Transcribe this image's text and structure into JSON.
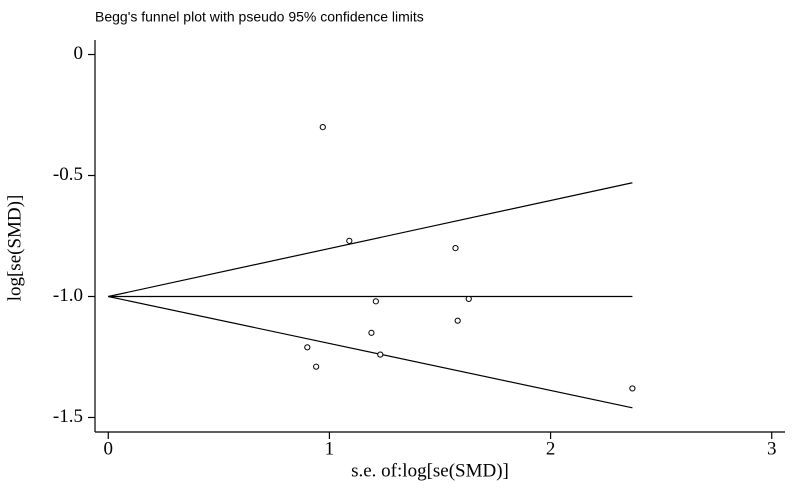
{
  "chart_data": {
    "type": "scatter",
    "title": "Begg's funnel plot with pseudo 95% confidence limits",
    "xlabel": "s.e. of:log[se(SMD)]",
    "ylabel": "log[se(SMD)]",
    "x": [
      0.97,
      1.09,
      1.57,
      1.21,
      1.63,
      1.19,
      1.58,
      0.9,
      0.94,
      1.23,
      2.37
    ],
    "values": [
      -0.3,
      -0.77,
      -0.8,
      -1.02,
      -1.01,
      -1.15,
      -1.1,
      -1.21,
      -1.29,
      -1.24,
      -1.38
    ],
    "lines": [
      {
        "x": [
          0,
          2.37
        ],
        "values": [
          -1,
          -0.53
        ]
      },
      {
        "x": [
          0,
          2.37
        ],
        "values": [
          -1,
          -1
        ]
      },
      {
        "x": [
          0,
          2.37
        ],
        "values": [
          -1,
          -1.46
        ]
      }
    ],
    "xlim": [
      -0.06,
      3.06
    ],
    "ylim": [
      -1.56,
      0.06
    ],
    "xticks": [
      0,
      1,
      2,
      3
    ],
    "yticks": [
      0,
      -0.5,
      {
        "value": -1,
        "label": "-1.0"
      },
      -1.5
    ],
    "grid": false
  }
}
